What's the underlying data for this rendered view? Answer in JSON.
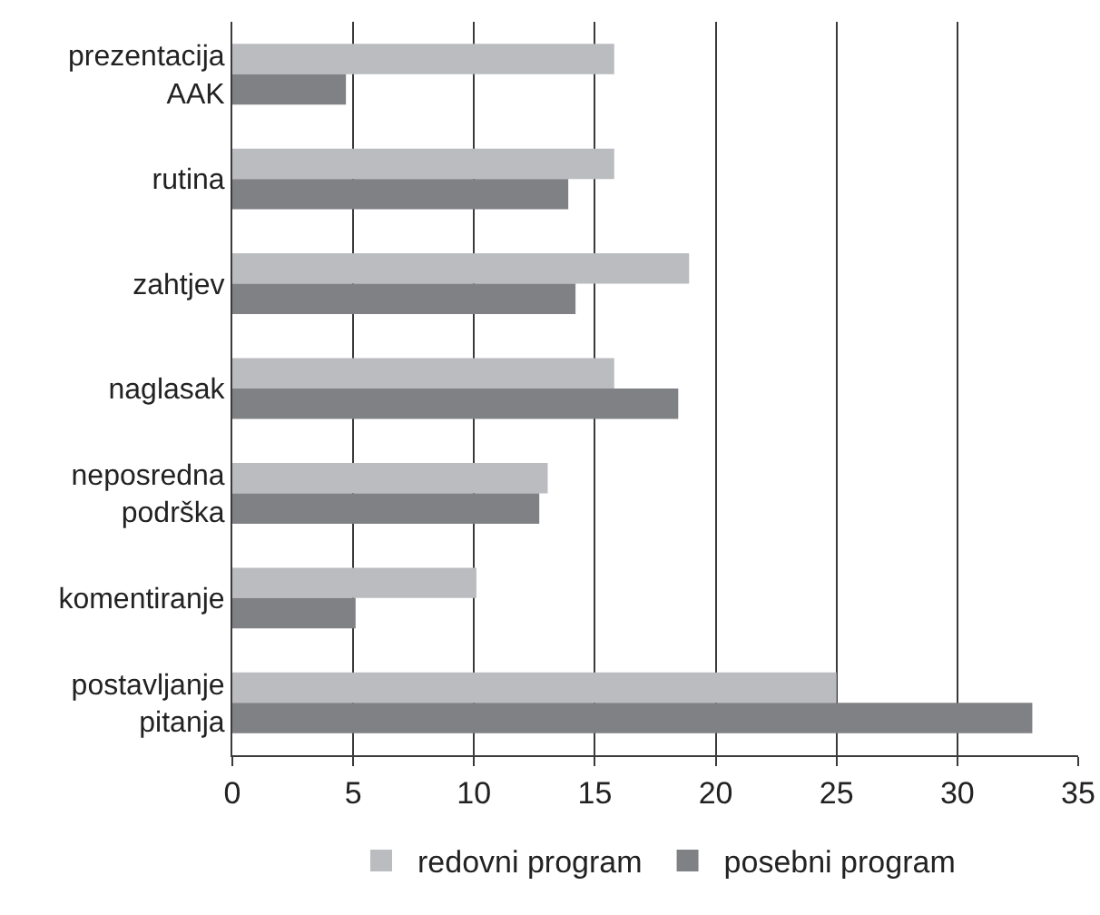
{
  "chart_data": {
    "type": "bar",
    "orientation": "horizontal",
    "categories": [
      "prezentacija AAK",
      "rutina",
      "zahtjev",
      "naglasak",
      "neposredna podrška",
      "komentiranje",
      "postavljanje pitanja"
    ],
    "series": [
      {
        "name": "redovni program",
        "color": "#bbbcc0",
        "values": [
          15.8,
          15.8,
          18.9,
          15.8,
          13.05,
          10.1,
          25
        ]
      },
      {
        "name": "posebni program",
        "color": "#808185",
        "values": [
          4.7,
          13.9,
          14.2,
          18.45,
          12.7,
          5.1,
          33.1
        ]
      }
    ],
    "xlim": [
      0,
      35
    ],
    "xticks": [
      0,
      5,
      10,
      15,
      20,
      25,
      30,
      35
    ],
    "grid": "x",
    "legend": "bottom"
  }
}
